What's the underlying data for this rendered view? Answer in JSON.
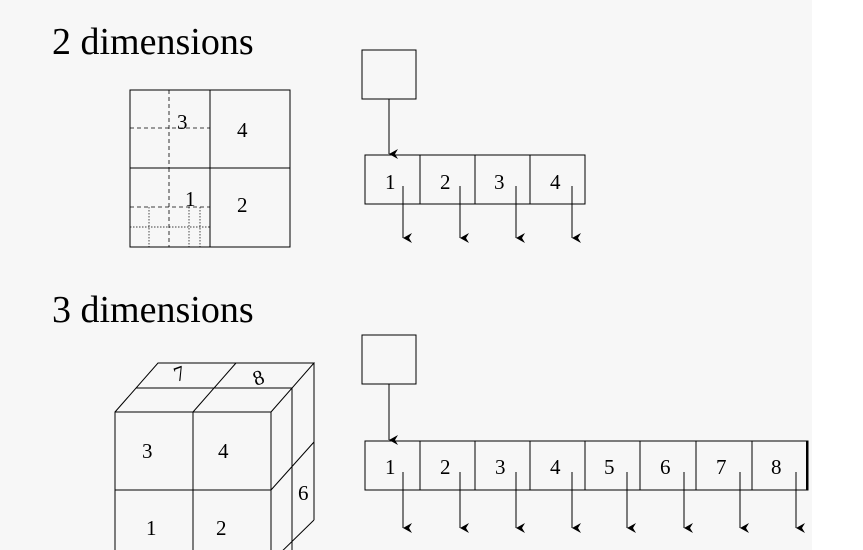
{
  "section_2d": {
    "heading": "2 dimensions",
    "quad_labels": [
      "3",
      "4",
      "1",
      "2"
    ],
    "node_cells": [
      "1",
      "2",
      "3",
      "4"
    ]
  },
  "section_3d": {
    "heading": "3 dimensions",
    "front_labels": [
      "3",
      "4",
      "1",
      "2"
    ],
    "top_labels": [
      "7",
      "8"
    ],
    "side_label": "6",
    "node_cells": [
      "1",
      "2",
      "3",
      "4",
      "5",
      "6",
      "7",
      "8"
    ]
  }
}
